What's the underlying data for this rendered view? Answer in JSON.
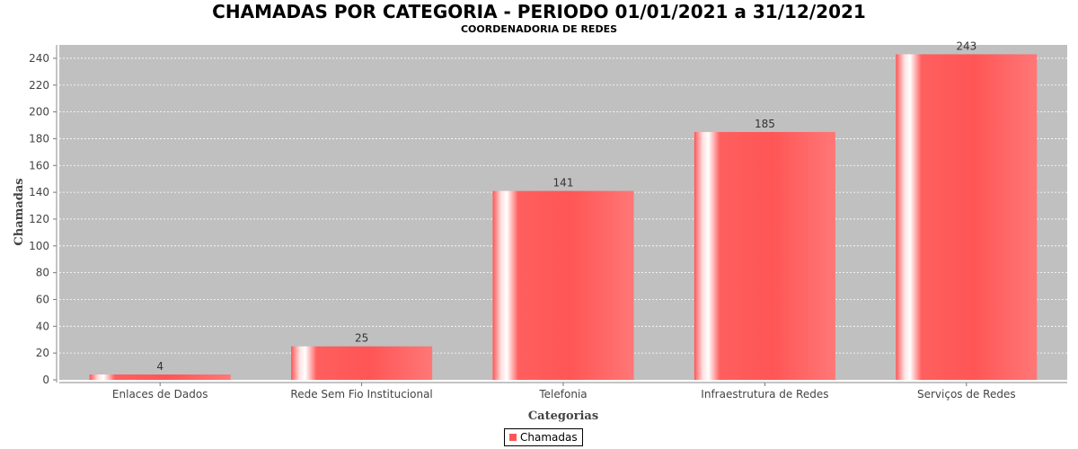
{
  "title": "CHAMADAS POR CATEGORIA - PERIODO 01/01/2021 a 31/12/2021",
  "subtitle": "COORDENADORIA DE REDES",
  "colors": {
    "bar": "#ff5555",
    "plot_bg": "#c0c0c0",
    "grid": "#ffffff"
  },
  "chart_data": {
    "type": "bar",
    "title": "CHAMADAS POR CATEGORIA - PERIODO 01/01/2021 a 31/12/2021",
    "subtitle": "COORDENADORIA DE REDES",
    "xlabel": "Categorias",
    "ylabel": "Chamadas",
    "categories": [
      "Enlaces de Dados",
      "Rede Sem Fio Institucional",
      "Telefonia",
      "Infraestrutura de Redes",
      "Serviços de Redes"
    ],
    "series": [
      {
        "name": "Chamadas",
        "values": [
          4,
          25,
          141,
          185,
          243
        ]
      }
    ],
    "ylim": [
      0,
      250
    ],
    "yticks": [
      0,
      20,
      40,
      60,
      80,
      100,
      120,
      140,
      160,
      180,
      200,
      220,
      240
    ],
    "grid": true,
    "legend_position": "bottom-center"
  }
}
